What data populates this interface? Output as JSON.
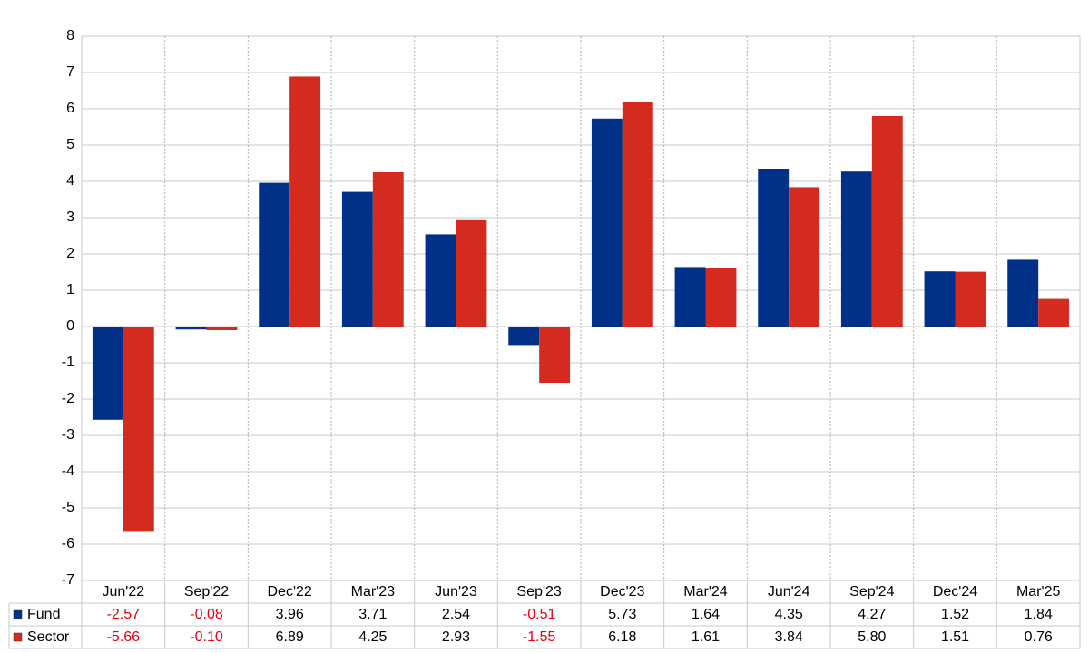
{
  "chart_data": {
    "type": "bar",
    "categories": [
      "Jun'22",
      "Sep'22",
      "Dec'22",
      "Mar'23",
      "Jun'23",
      "Sep'23",
      "Dec'23",
      "Mar'24",
      "Jun'24",
      "Sep'24",
      "Dec'24",
      "Mar'25"
    ],
    "series": [
      {
        "name": "Fund",
        "color": "#003087",
        "values": [
          -2.57,
          -0.08,
          3.96,
          3.71,
          2.54,
          -0.51,
          5.73,
          1.64,
          4.35,
          4.27,
          1.52,
          1.84
        ],
        "value_labels": [
          "-2.57",
          "-0.08",
          "3.96",
          "3.71",
          "2.54",
          "-0.51",
          "5.73",
          "1.64",
          "4.35",
          "4.27",
          "1.52",
          "1.84"
        ]
      },
      {
        "name": "Sector",
        "color": "#d52b1e",
        "values": [
          -5.66,
          -0.1,
          6.89,
          4.25,
          2.93,
          -1.55,
          6.18,
          1.61,
          3.84,
          5.8,
          1.51,
          0.76
        ],
        "value_labels": [
          "-5.66",
          "-0.10",
          "6.89",
          "4.25",
          "2.93",
          "-1.55",
          "6.18",
          "1.61",
          "3.84",
          "5.80",
          "1.51",
          "0.76"
        ]
      }
    ],
    "ylim": [
      -7,
      8
    ],
    "yticks": [
      -7,
      -6,
      -5,
      -4,
      -3,
      -2,
      -1,
      0,
      1,
      2,
      3,
      4,
      5,
      6,
      7,
      8
    ],
    "grid": true
  }
}
